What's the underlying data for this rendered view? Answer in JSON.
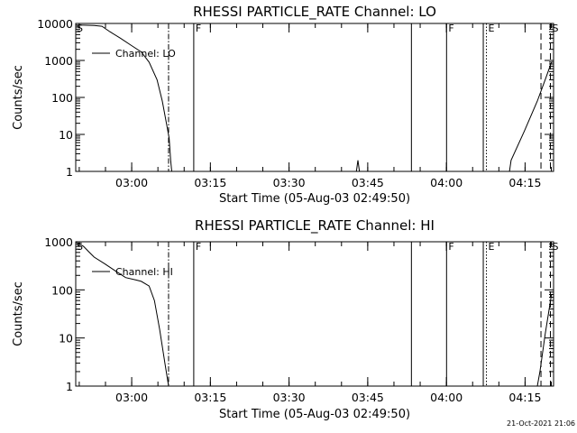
{
  "chart_data": [
    {
      "type": "line",
      "title": "RHESSI PARTICLE_RATE Channel: LO",
      "xlabel": "Start Time (05-Aug-03 02:49:50)",
      "ylabel": "Counts/sec",
      "yscale": "log",
      "ylim": [
        1,
        10000
      ],
      "yticks": [
        {
          "value": 1,
          "label": "1"
        },
        {
          "value": 10,
          "label": "10"
        },
        {
          "value": 100,
          "label": "100"
        },
        {
          "value": 1000,
          "label": "1000"
        },
        {
          "value": 10000,
          "label": "10000"
        }
      ],
      "xlim": [
        -0.5,
        90.6
      ],
      "xticks": [
        {
          "value": 10.17,
          "label": "03:00"
        },
        {
          "value": 25.17,
          "label": "03:15"
        },
        {
          "value": 40.17,
          "label": "03:30"
        },
        {
          "value": 55.17,
          "label": "03:45"
        },
        {
          "value": 70.17,
          "label": "04:00"
        },
        {
          "value": 85.17,
          "label": "04:15"
        }
      ],
      "legend": {
        "label": "Channel: LO",
        "position": "top-left"
      },
      "series": [
        {
          "name": "Channel: LO",
          "x": [
            -0.5,
            1,
            3,
            4.5,
            6,
            8,
            10,
            12,
            13.5,
            15,
            16,
            16.8,
            17.3,
            17.6,
            17.8
          ],
          "y": [
            9000,
            9000,
            8800,
            8400,
            6000,
            4000,
            2600,
            1700,
            900,
            300,
            80,
            20,
            8,
            2,
            1
          ]
        },
        {
          "name": "Channel: LO",
          "x": [
            53,
            53.3,
            53.6
          ],
          "y": [
            1,
            2,
            1
          ]
        },
        {
          "name": "Channel: LO",
          "x": [
            82.2,
            82.5,
            85,
            87.5,
            89,
            90.2
          ],
          "y": [
            1,
            2,
            12,
            80,
            300,
            900
          ]
        }
      ],
      "vlines": [
        {
          "x": 17.2,
          "style": "dashdot",
          "label": ""
        },
        {
          "x": 22.0,
          "style": "solid",
          "label": "F"
        },
        {
          "x": 63.5,
          "style": "solid",
          "label": ""
        },
        {
          "x": 70.2,
          "style": "solid",
          "label": "F"
        },
        {
          "x": 77.2,
          "style": "solid",
          "label": ""
        },
        {
          "x": 77.8,
          "style": "dotted",
          "label": "E"
        },
        {
          "x": 88.2,
          "style": "dashed",
          "label": ""
        },
        {
          "x": 90.0,
          "style": "dashed",
          "label": "S"
        }
      ],
      "corner_label": "S"
    },
    {
      "type": "line",
      "title": "RHESSI PARTICLE_RATE Channel: HI",
      "xlabel": "Start Time (05-Aug-03 02:49:50)",
      "ylabel": "Counts/sec",
      "yscale": "log",
      "ylim": [
        1,
        1000
      ],
      "yticks": [
        {
          "value": 1,
          "label": "1"
        },
        {
          "value": 10,
          "label": "10"
        },
        {
          "value": 100,
          "label": "100"
        },
        {
          "value": 1000,
          "label": "1000"
        }
      ],
      "xlim": [
        -0.5,
        90.6
      ],
      "xticks": [
        {
          "value": 10.17,
          "label": "03:00"
        },
        {
          "value": 25.17,
          "label": "03:15"
        },
        {
          "value": 40.17,
          "label": "03:30"
        },
        {
          "value": 55.17,
          "label": "03:45"
        },
        {
          "value": 70.17,
          "label": "04:00"
        },
        {
          "value": 85.17,
          "label": "04:15"
        }
      ],
      "legend": {
        "label": "Channel: HI",
        "position": "top-left"
      },
      "series": [
        {
          "name": "Channel: HI",
          "x": [
            -0.5,
            1,
            2,
            3,
            5,
            7,
            9,
            11,
            12,
            13.5,
            14.5,
            15.5,
            16.5,
            17.2
          ],
          "y": [
            1000,
            800,
            620,
            480,
            350,
            250,
            180,
            160,
            150,
            120,
            60,
            15,
            3,
            1
          ]
        },
        {
          "name": "Channel: HI",
          "x": [
            87.5,
            88,
            89,
            90.2
          ],
          "y": [
            1,
            2,
            12,
            80
          ]
        }
      ],
      "vlines": [
        {
          "x": 17.2,
          "style": "dashdot",
          "label": ""
        },
        {
          "x": 22.0,
          "style": "solid",
          "label": "F"
        },
        {
          "x": 63.5,
          "style": "solid",
          "label": ""
        },
        {
          "x": 70.2,
          "style": "solid",
          "label": "F"
        },
        {
          "x": 77.2,
          "style": "solid",
          "label": ""
        },
        {
          "x": 77.8,
          "style": "dotted",
          "label": "E"
        },
        {
          "x": 88.2,
          "style": "dashed",
          "label": ""
        },
        {
          "x": 90.0,
          "style": "dashed",
          "label": "S"
        }
      ],
      "corner_label": "S"
    }
  ],
  "timestamp": "21-Oct-2021 21:06"
}
